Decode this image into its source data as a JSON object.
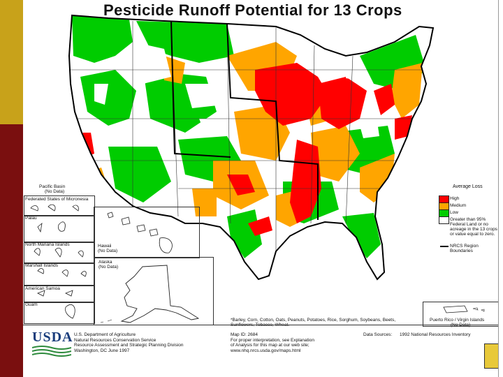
{
  "title": "Pesticide Runoff Potential for 13 Crops",
  "insets": {
    "pacific_basin": "Pacific Basin",
    "pacific_no_data": "(No Data)",
    "micronesia": "Federated States of Micronesia",
    "palau": "Palau",
    "northern_mariana": "North Mariana Islands",
    "marshall": "Marshall Islands",
    "american_samoa": "American Samoa",
    "guam": "Guam",
    "hawaii": "Hawaii",
    "hawaii_no_data": "(No Data)",
    "alaska": "Alaska",
    "alaska_no_data": "(No Data)",
    "puerto_rico": "Puerto Rico / Virgin Islands",
    "puerto_rico_no_data": "(No Data)"
  },
  "legend": {
    "title": "Average Loss",
    "items": [
      {
        "label": "High",
        "color": "#ff0000"
      },
      {
        "label": "Medium",
        "color": "#ffa500"
      },
      {
        "label": "Low",
        "color": "#00cc00"
      },
      {
        "label": "Greater than 95% Federal Land or no acreage in the 13 crops or value equal to zero.",
        "color": "#ffffff"
      }
    ],
    "boundary_label": "NRCS Region Boundaries"
  },
  "crops_note": "*Barley, Corn, Cotton, Oats, Peanuts, Potatoes, Rice, Sorghum, Soybeans, Beets, Sunflowers, Tobacco, Wheat.",
  "footer": {
    "logo": "USDA",
    "agency_lines": [
      "U.S. Department of Agriculture",
      "Natural Resources Conservation Service",
      "Resource Assessment and Strategic Planning Division",
      "Washington, DC    June 1997"
    ],
    "map_id_lines": [
      "Map ID: 2684",
      "For proper interpretation, see Explanation",
      "of Analysis for this map at our web site;",
      "www.nhq.nrcs.usda.gov/maps.html"
    ],
    "data_sources_label": "Data Sources:",
    "data_sources_value": "1992 National Resources Inventory"
  },
  "colors": {
    "high": "#ff0000",
    "medium": "#ffa500",
    "low": "#00cc00",
    "none": "#ffffff",
    "slide_gold": "#c8a21a",
    "slide_maroon": "#7a0f0f"
  }
}
